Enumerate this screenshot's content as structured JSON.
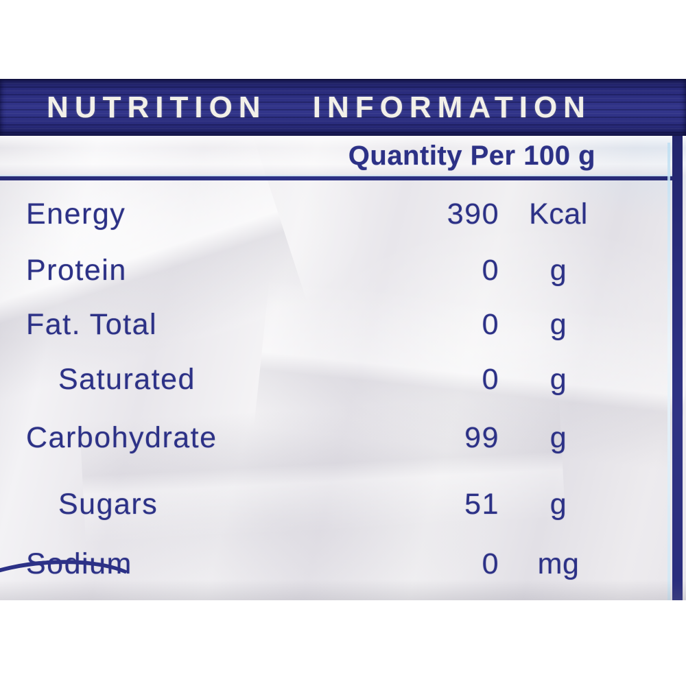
{
  "header": {
    "title": "NUTRITION INFORMATION"
  },
  "table": {
    "quantity_header": "Quantity Per 100 g",
    "rows": [
      {
        "name": "Energy",
        "value": "390",
        "unit": "Kcal"
      },
      {
        "name": "Protein",
        "value": "0",
        "unit": "g"
      },
      {
        "name": "Fat. Total",
        "value": "0",
        "unit": "g"
      },
      {
        "name": "Saturated",
        "value": "0",
        "unit": "g"
      },
      {
        "name": "Carbohydrate",
        "value": "99",
        "unit": "g"
      },
      {
        "name": "Sugars",
        "value": "51",
        "unit": "g"
      },
      {
        "name": "Sodium",
        "value": "0",
        "unit": "mg"
      }
    ]
  },
  "colors": {
    "navy": "#2a2c7c",
    "navy_dark": "#1a1c58",
    "text_navy": "#2c3186",
    "title_text": "#f2f0e9",
    "highlight_blue": "#cfe8f6"
  }
}
